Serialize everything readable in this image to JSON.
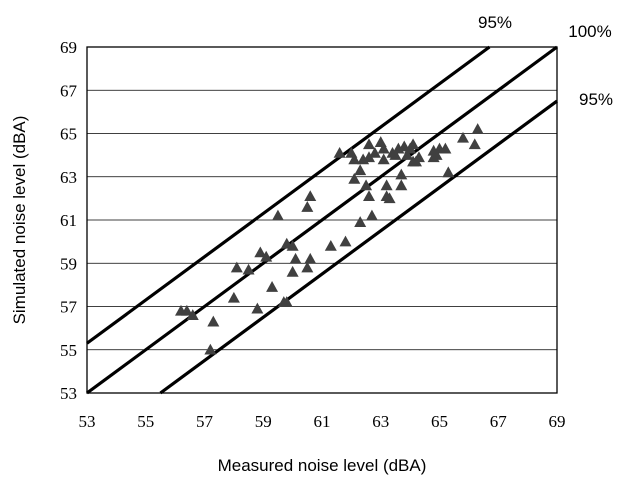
{
  "chart_data": {
    "type": "scatter",
    "xlabel": "Measured noise level (dBA)",
    "ylabel": "Simulated noise level (dBA)",
    "xlim": [
      53,
      69
    ],
    "ylim": [
      53,
      69
    ],
    "xticks": [
      "53",
      "55",
      "57",
      "59",
      "61",
      "63",
      "65",
      "67",
      "69"
    ],
    "yticks": [
      "53",
      "55",
      "57",
      "59",
      "61",
      "63",
      "65",
      "67",
      "69"
    ],
    "grid": "horizontal",
    "marker": "triangle",
    "marker_color": "#404040",
    "points": [
      [
        56.2,
        56.8
      ],
      [
        56.4,
        56.8
      ],
      [
        56.6,
        56.6
      ],
      [
        57.2,
        55.0
      ],
      [
        57.3,
        56.3
      ],
      [
        58.0,
        57.4
      ],
      [
        58.1,
        58.8
      ],
      [
        58.5,
        58.7
      ],
      [
        58.8,
        56.9
      ],
      [
        58.9,
        59.5
      ],
      [
        59.1,
        59.3
      ],
      [
        59.3,
        57.9
      ],
      [
        59.5,
        61.2
      ],
      [
        59.7,
        57.2
      ],
      [
        59.8,
        57.2
      ],
      [
        59.8,
        59.9
      ],
      [
        60.0,
        59.8
      ],
      [
        60.0,
        58.6
      ],
      [
        60.1,
        59.2
      ],
      [
        60.5,
        58.8
      ],
      [
        60.5,
        61.6
      ],
      [
        60.6,
        62.1
      ],
      [
        60.6,
        59.2
      ],
      [
        61.3,
        59.8
      ],
      [
        61.6,
        64.1
      ],
      [
        61.8,
        60.0
      ],
      [
        62.0,
        64.1
      ],
      [
        62.1,
        63.8
      ],
      [
        62.1,
        62.9
      ],
      [
        62.3,
        63.3
      ],
      [
        62.3,
        60.9
      ],
      [
        62.4,
        63.8
      ],
      [
        62.5,
        62.6
      ],
      [
        62.6,
        64.5
      ],
      [
        62.6,
        63.9
      ],
      [
        62.6,
        62.1
      ],
      [
        62.7,
        61.2
      ],
      [
        62.8,
        64.1
      ],
      [
        63.0,
        64.6
      ],
      [
        63.1,
        64.3
      ],
      [
        63.1,
        63.8
      ],
      [
        63.2,
        62.6
      ],
      [
        63.2,
        62.1
      ],
      [
        63.3,
        62.0
      ],
      [
        63.4,
        64.1
      ],
      [
        63.5,
        64.0
      ],
      [
        63.6,
        64.3
      ],
      [
        63.7,
        63.1
      ],
      [
        63.7,
        62.6
      ],
      [
        63.8,
        64.4
      ],
      [
        63.9,
        64.0
      ],
      [
        64.0,
        64.3
      ],
      [
        64.1,
        64.5
      ],
      [
        64.1,
        63.7
      ],
      [
        64.2,
        63.7
      ],
      [
        64.3,
        63.9
      ],
      [
        64.8,
        63.9
      ],
      [
        64.8,
        64.2
      ],
      [
        64.9,
        64.0
      ],
      [
        65.0,
        64.3
      ],
      [
        65.2,
        64.3
      ],
      [
        65.3,
        63.2
      ],
      [
        65.8,
        64.8
      ],
      [
        66.2,
        64.5
      ],
      [
        66.3,
        65.2
      ]
    ],
    "reference_lines": [
      {
        "label": "95%",
        "offset": 2.3,
        "label_pos": "top"
      },
      {
        "label": "100%",
        "offset": 0,
        "label_pos": "top-right"
      },
      {
        "label": "95%",
        "offset": -2.5,
        "label_pos": "right"
      }
    ]
  }
}
